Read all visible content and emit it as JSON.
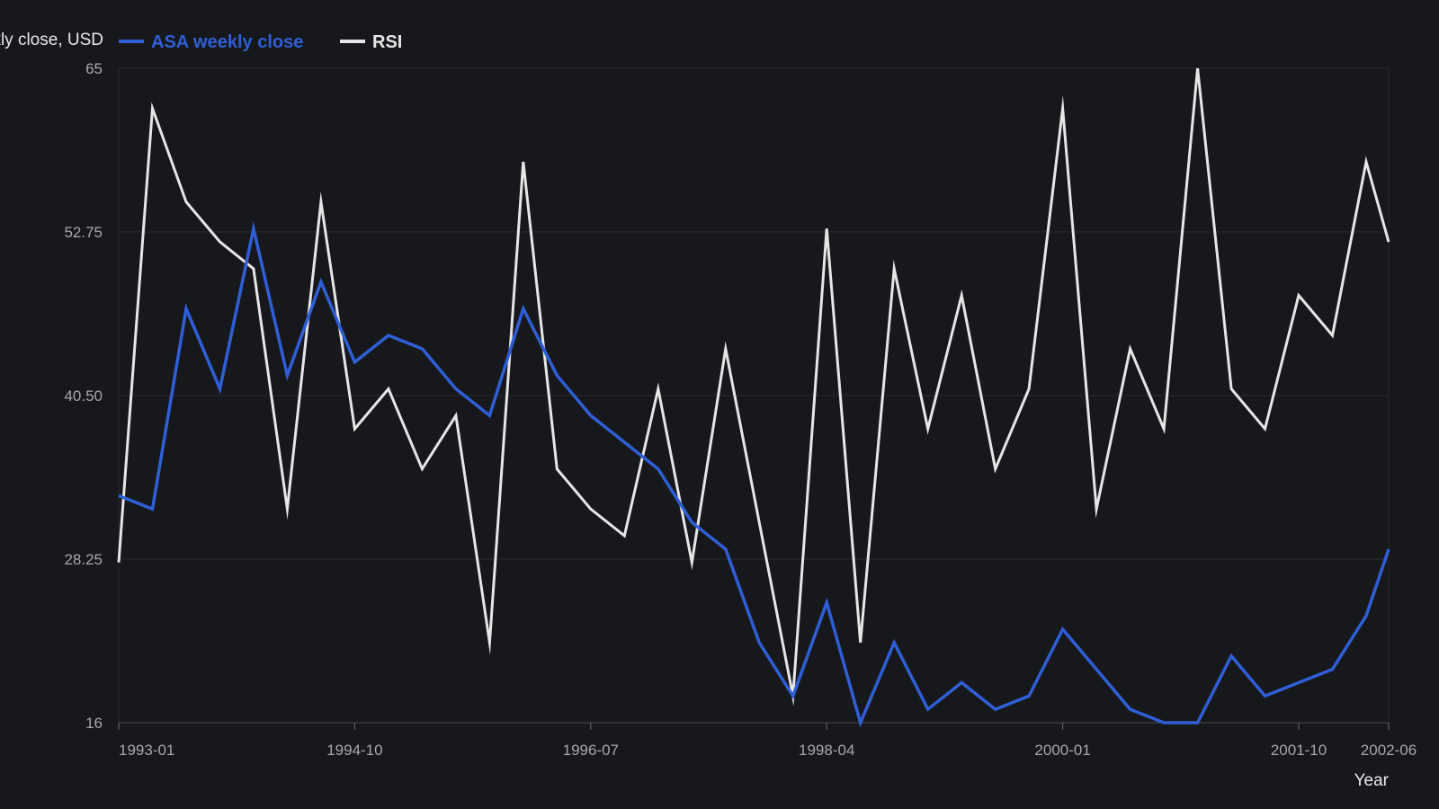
{
  "chart_data": {
    "type": "line",
    "xlabel": "Year",
    "ylabel": "Weekly close, USD",
    "ylim": [
      16,
      65
    ],
    "y_ticks": [
      "16",
      "28.25",
      "40.50",
      "52.75",
      "65"
    ],
    "x_tick_labels": [
      "1993-01",
      "1994-10",
      "1996-07",
      "1998-04",
      "2000-01",
      "2001-10",
      "2002-06"
    ],
    "grid": true,
    "legend_position": "top-left",
    "x": [
      "1993-01",
      "1993-04",
      "1993-07",
      "1993-10",
      "1994-01",
      "1994-04",
      "1994-07",
      "1994-10",
      "1995-01",
      "1995-04",
      "1995-07",
      "1995-10",
      "1996-01",
      "1996-04",
      "1996-07",
      "1996-10",
      "1997-01",
      "1997-04",
      "1997-07",
      "1997-10",
      "1998-01",
      "1998-04",
      "1998-07",
      "1998-10",
      "1999-01",
      "1999-04",
      "1999-07",
      "1999-10",
      "2000-01",
      "2000-04",
      "2000-07",
      "2000-10",
      "2001-01",
      "2001-04",
      "2001-07",
      "2001-10",
      "2002-01",
      "2002-04",
      "2002-06"
    ],
    "series": [
      {
        "name": "ASA weekly close",
        "color": "#2f5fd6",
        "values": [
          33,
          32,
          47,
          41,
          53,
          42,
          49,
          43,
          45,
          44,
          41,
          39,
          47,
          42,
          39,
          37,
          35,
          31,
          29,
          22,
          18,
          25,
          16,
          22,
          17,
          19,
          17,
          18,
          23,
          20,
          17,
          16,
          16,
          21,
          18,
          19,
          20,
          24,
          29
        ]
      },
      {
        "name": "RSI",
        "color": "#e6e6e6",
        "values": [
          28,
          62,
          55,
          52,
          50,
          32,
          55,
          38,
          41,
          35,
          39,
          22,
          58,
          35,
          32,
          30,
          41,
          28,
          44,
          31,
          18,
          53,
          22,
          50,
          38,
          48,
          35,
          41,
          62,
          32,
          44,
          38,
          65,
          41,
          38,
          48,
          45,
          58,
          52
        ]
      }
    ]
  }
}
